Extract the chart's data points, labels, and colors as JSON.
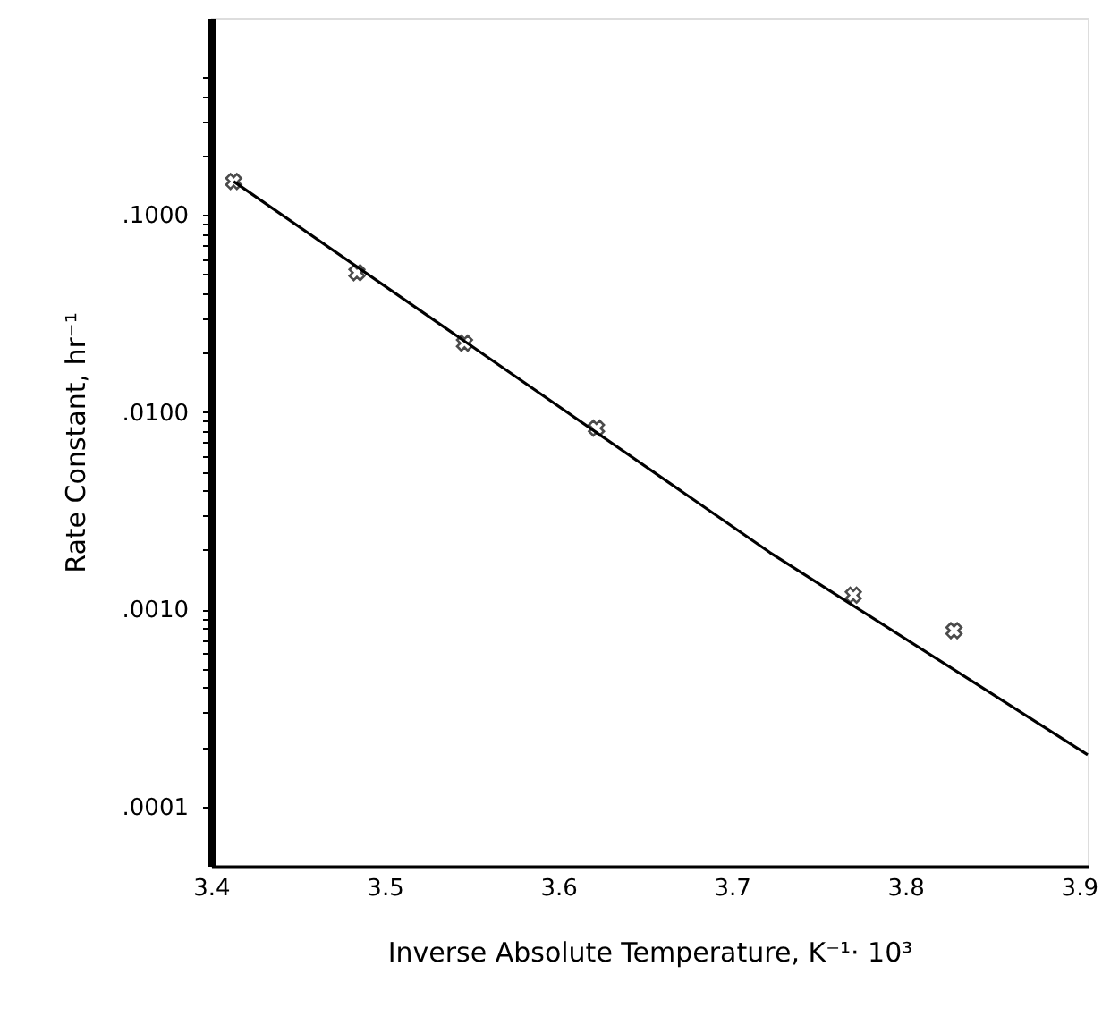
{
  "chart_data": {
    "type": "scatter",
    "xlabel": "Inverse Absolute Temperature, K⁻¹· 10³",
    "ylabel": "Rate Constant, hr⁻¹",
    "log": "y",
    "grid": false,
    "xlim": [
      3.4,
      3.905
    ],
    "xticks": [
      {
        "value": 3.4,
        "label": "3.4"
      },
      3.5,
      3.6,
      3.7,
      3.8,
      3.9
    ],
    "ylim": [
      5e-05,
      1
    ],
    "yticks": [
      {
        "value": 0.0001,
        "label": ".0001"
      },
      {
        "value": 0.0002,
        "label": null
      },
      {
        "value": 0.0003,
        "label": null
      },
      {
        "value": 0.0004,
        "label": null
      },
      {
        "value": 0.0005,
        "label": null
      },
      {
        "value": 0.0006,
        "label": null
      },
      {
        "value": 0.0007,
        "label": null
      },
      {
        "value": 0.0008,
        "label": null
      },
      {
        "value": 0.0009,
        "label": null
      },
      {
        "value": 0.001,
        "label": ".0010"
      },
      {
        "value": 0.002,
        "label": null
      },
      {
        "value": 0.003,
        "label": null
      },
      {
        "value": 0.004,
        "label": null
      },
      {
        "value": 0.005,
        "label": null
      },
      {
        "value": 0.006,
        "label": null
      },
      {
        "value": 0.007,
        "label": null
      },
      {
        "value": 0.008,
        "label": null
      },
      {
        "value": 0.009,
        "label": null
      },
      {
        "value": 0.01,
        "label": ".0100"
      },
      {
        "value": 0.02,
        "label": null
      },
      {
        "value": 0.03,
        "label": null
      },
      {
        "value": 0.04,
        "label": null
      },
      {
        "value": 0.05,
        "label": null
      },
      {
        "value": 0.06,
        "label": null
      },
      {
        "value": 0.07,
        "label": null
      },
      {
        "value": 0.08,
        "label": null
      },
      {
        "value": 0.09,
        "label": null
      },
      {
        "value": 0.1,
        "label": ".1000"
      },
      {
        "value": 0.2,
        "label": null
      },
      {
        "value": 0.3,
        "label": null
      },
      {
        "value": 0.4,
        "label": null
      },
      {
        "value": 0.5,
        "label": null
      }
    ],
    "series": [
      {
        "marker": "cross",
        "color": "#000000",
        "x": [
          3.413,
          3.484,
          3.546,
          3.622,
          3.77,
          3.828
        ],
        "values": [
          0.148,
          0.051,
          0.0224,
          0.0083,
          0.00118,
          0.00078
        ]
      },
      {
        "type": "line",
        "line_style": "solid",
        "color": "#000000",
        "x": [
          3.413,
          3.722,
          3.905
        ],
        "values": [
          0.148,
          0.00194,
          0.000183
        ]
      }
    ]
  }
}
